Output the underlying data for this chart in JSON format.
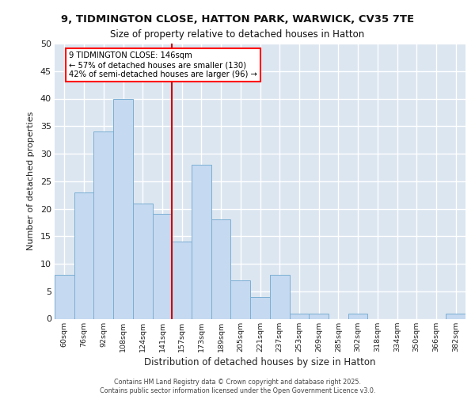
{
  "title1": "9, TIDMINGTON CLOSE, HATTON PARK, WARWICK, CV35 7TE",
  "title2": "Size of property relative to detached houses in Hatton",
  "xlabel": "Distribution of detached houses by size in Hatton",
  "ylabel": "Number of detached properties",
  "bar_labels": [
    "60sqm",
    "76sqm",
    "92sqm",
    "108sqm",
    "124sqm",
    "141sqm",
    "157sqm",
    "173sqm",
    "189sqm",
    "205sqm",
    "221sqm",
    "237sqm",
    "253sqm",
    "269sqm",
    "285sqm",
    "302sqm",
    "318sqm",
    "334sqm",
    "350sqm",
    "366sqm",
    "382sqm"
  ],
  "bar_values": [
    8,
    23,
    34,
    40,
    21,
    19,
    14,
    28,
    18,
    7,
    4,
    8,
    1,
    1,
    0,
    1,
    0,
    0,
    0,
    0,
    1
  ],
  "bar_color": "#c5d9f0",
  "bar_edge_color": "#7bafd4",
  "fig_bg_color": "#ffffff",
  "plot_bg_color": "#dce6f1",
  "grid_color": "#ffffff",
  "vline_color": "#cc0000",
  "vline_position": 5.5,
  "annotation_text": "9 TIDMINGTON CLOSE: 146sqm\n← 57% of detached houses are smaller (130)\n42% of semi-detached houses are larger (96) →",
  "footer_text": "Contains HM Land Registry data © Crown copyright and database right 2025.\nContains public sector information licensed under the Open Government Licence v3.0.",
  "ylim": [
    0,
    50
  ],
  "yticks": [
    0,
    5,
    10,
    15,
    20,
    25,
    30,
    35,
    40,
    45,
    50
  ]
}
